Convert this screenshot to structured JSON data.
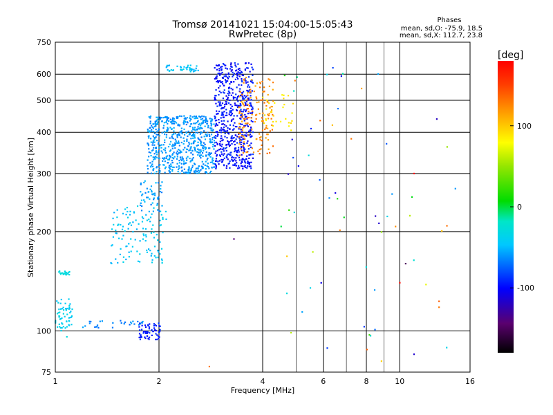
{
  "chart_data": {
    "type": "scatter",
    "title": "Tromsø 20141021 15:04:00-15:05:43",
    "subtitle": "RwPretec (8p)",
    "stats": {
      "heading": "Phases",
      "line1": "mean, sd,O: -75.9, 18.5",
      "line2": "mean, sd,X: 112.7, 23.8"
    },
    "xlabel": "Frequency [MHz]",
    "ylabel": "Stationary phase Virtual Height [km]",
    "x_scale": "log",
    "y_scale": "log",
    "xlim": [
      1,
      16
    ],
    "ylim": [
      75,
      750
    ],
    "x_ticks": [
      {
        "v": 1,
        "label": "1"
      },
      {
        "v": 2,
        "label": "2"
      },
      {
        "v": 4,
        "label": "4"
      },
      {
        "v": 6,
        "label": "6"
      },
      {
        "v": 8,
        "label": "8"
      },
      {
        "v": 10,
        "label": "10"
      },
      {
        "v": 16,
        "label": "16"
      }
    ],
    "x_grid": [
      2,
      4,
      6,
      8,
      10
    ],
    "x_minor_grid": [
      5,
      7,
      9
    ],
    "y_ticks": [
      {
        "v": 75,
        "label": "75"
      },
      {
        "v": 100,
        "label": "100"
      },
      {
        "v": 200,
        "label": "200"
      },
      {
        "v": 300,
        "label": "300"
      },
      {
        "v": 400,
        "label": "400"
      },
      {
        "v": 500,
        "label": "500"
      },
      {
        "v": 600,
        "label": "600"
      },
      {
        "v": 750,
        "label": "750"
      }
    ],
    "y_grid": [
      100,
      200,
      300,
      400,
      500,
      600
    ],
    "grid": true,
    "colorbar": {
      "label": "[deg]",
      "range": [
        -180,
        180
      ],
      "ticks": [
        {
          "v": 100,
          "label": "100"
        },
        {
          "v": 0,
          "label": "0"
        },
        {
          "v": -100,
          "label": "-100"
        }
      ]
    },
    "clusters": [
      {
        "name": "low-E-traces",
        "x": [
          1.0,
          1.12
        ],
        "y": [
          100,
          125
        ],
        "phase": [
          -50,
          -30
        ],
        "n": 60
      },
      {
        "name": "E-trace-1.1",
        "x": [
          1.0,
          1.1
        ],
        "y": [
          148,
          152
        ],
        "phase": [
          -35,
          -25
        ],
        "n": 20
      },
      {
        "name": "E-low",
        "x": [
          1.2,
          1.8
        ],
        "y": [
          102,
          108
        ],
        "phase": [
          -75,
          -55
        ],
        "n": 30
      },
      {
        "name": "E-blue-blob",
        "x": [
          1.75,
          2.02
        ],
        "y": [
          94,
          106
        ],
        "phase": [
          -100,
          -85
        ],
        "n": 60
      },
      {
        "name": "Es-rising",
        "x": [
          1.45,
          2.1
        ],
        "y": [
          160,
          240
        ],
        "phase": [
          -55,
          -35
        ],
        "n": 120
      },
      {
        "name": "Es-upper",
        "x": [
          1.75,
          2.05
        ],
        "y": [
          230,
          285
        ],
        "phase": [
          -70,
          -45
        ],
        "n": 50
      },
      {
        "name": "F1-band",
        "x": [
          1.85,
          2.9
        ],
        "y": [
          300,
          450
        ],
        "phase": [
          -70,
          -50
        ],
        "n": 650
      },
      {
        "name": "F-top-2.2",
        "x": [
          2.1,
          2.6
        ],
        "y": [
          610,
          640
        ],
        "phase": [
          -55,
          -35
        ],
        "n": 40
      },
      {
        "name": "F2-O-trace",
        "x": [
          2.9,
          3.75
        ],
        "y": [
          310,
          650
        ],
        "phase": [
          -110,
          -85
        ],
        "n": 600
      },
      {
        "name": "F2-X-trace",
        "x": [
          3.4,
          4.3
        ],
        "y": [
          340,
          600
        ],
        "phase": [
          110,
          135
        ],
        "n": 150
      },
      {
        "name": "F2-X-yellow",
        "x": [
          4.0,
          4.9
        ],
        "y": [
          400,
          520
        ],
        "phase": [
          80,
          95
        ],
        "n": 30
      },
      {
        "name": "scatter-high",
        "x": [
          4.5,
          14
        ],
        "y": [
          80,
          650
        ],
        "phase": [
          -120,
          140
        ],
        "n": 55
      }
    ],
    "points": [
      {
        "x": 1.08,
        "y": 96,
        "phase": -30
      },
      {
        "x": 2.8,
        "y": 78,
        "phase": 130
      },
      {
        "x": 3.3,
        "y": 190,
        "phase": -140
      },
      {
        "x": 4.7,
        "y": 130,
        "phase": -30
      },
      {
        "x": 5.5,
        "y": 135,
        "phase": -35
      },
      {
        "x": 6.7,
        "y": 202,
        "phase": 130
      },
      {
        "x": 11,
        "y": 85,
        "phase": -115
      },
      {
        "x": 11,
        "y": 300,
        "phase": 180
      },
      {
        "x": 13,
        "y": 123,
        "phase": 140
      },
      {
        "x": 13,
        "y": 118,
        "phase": 130
      },
      {
        "x": 10.4,
        "y": 160,
        "phase": -150
      },
      {
        "x": 10,
        "y": 140,
        "phase": 175
      },
      {
        "x": 6.5,
        "y": 262,
        "phase": -110
      },
      {
        "x": 9.5,
        "y": 260,
        "phase": -60
      },
      {
        "x": 8.7,
        "y": 212,
        "phase": -115
      },
      {
        "x": 14.5,
        "y": 270,
        "phase": -60
      }
    ]
  }
}
